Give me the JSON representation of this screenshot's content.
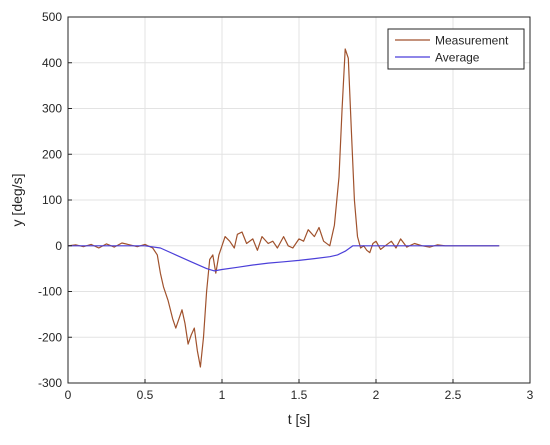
{
  "chart_data": {
    "type": "line",
    "xlabel": "t [s]",
    "ylabel": "y [deg/s]",
    "xlim": [
      0,
      3
    ],
    "ylim": [
      -300,
      500
    ],
    "xticks": [
      0,
      0.5,
      1,
      1.5,
      2,
      2.5,
      3
    ],
    "xtick_labels": [
      "0",
      "0.5",
      "1",
      "1.5",
      "2",
      "2.5",
      "3"
    ],
    "yticks": [
      -300,
      -200,
      -100,
      0,
      100,
      200,
      300,
      400,
      500
    ],
    "ytick_labels": [
      "-300",
      "-200",
      "-100",
      "0",
      "100",
      "200",
      "300",
      "400",
      "500"
    ],
    "grid": true,
    "legend_position": "top-right",
    "series": [
      {
        "name": "Measurement",
        "color": "#a0522d",
        "x": [
          0.0,
          0.05,
          0.1,
          0.15,
          0.2,
          0.25,
          0.3,
          0.35,
          0.4,
          0.45,
          0.5,
          0.55,
          0.58,
          0.6,
          0.62,
          0.65,
          0.68,
          0.7,
          0.72,
          0.74,
          0.76,
          0.78,
          0.8,
          0.82,
          0.84,
          0.86,
          0.88,
          0.9,
          0.92,
          0.94,
          0.96,
          0.98,
          1.0,
          1.02,
          1.05,
          1.08,
          1.1,
          1.13,
          1.16,
          1.2,
          1.23,
          1.26,
          1.3,
          1.33,
          1.36,
          1.4,
          1.43,
          1.46,
          1.5,
          1.53,
          1.56,
          1.6,
          1.63,
          1.66,
          1.7,
          1.73,
          1.76,
          1.78,
          1.8,
          1.82,
          1.84,
          1.86,
          1.88,
          1.9,
          1.92,
          1.94,
          1.96,
          1.98,
          2.0,
          2.03,
          2.06,
          2.1,
          2.13,
          2.16,
          2.2,
          2.25,
          2.3,
          2.35,
          2.4,
          2.45,
          2.5,
          2.6,
          2.7,
          2.8
        ],
        "y": [
          0,
          2,
          -2,
          3,
          -5,
          4,
          -3,
          6,
          2,
          -2,
          3,
          -5,
          -20,
          -60,
          -90,
          -120,
          -160,
          -180,
          -160,
          -140,
          -170,
          -215,
          -195,
          -180,
          -230,
          -265,
          -200,
          -100,
          -30,
          -20,
          -60,
          -20,
          0,
          20,
          10,
          -5,
          25,
          30,
          5,
          15,
          -10,
          20,
          5,
          10,
          -5,
          20,
          0,
          -5,
          15,
          10,
          35,
          20,
          40,
          10,
          0,
          45,
          150,
          300,
          430,
          410,
          250,
          100,
          20,
          -5,
          0,
          -10,
          -15,
          5,
          10,
          -8,
          0,
          10,
          -5,
          15,
          -3,
          5,
          0,
          -3,
          2,
          0,
          0,
          0,
          0,
          0
        ],
        "x_note_units": "s"
      },
      {
        "name": "Average",
        "color": "#4b3fd9",
        "x": [
          0.0,
          0.5,
          0.6,
          0.7,
          0.8,
          0.9,
          0.95,
          1.0,
          1.1,
          1.2,
          1.3,
          1.4,
          1.5,
          1.6,
          1.7,
          1.75,
          1.8,
          1.85,
          1.9,
          1.95,
          2.0,
          2.5,
          2.8
        ],
        "y": [
          0,
          0,
          -5,
          -20,
          -35,
          -50,
          -55,
          -52,
          -47,
          -42,
          -38,
          -35,
          -32,
          -28,
          -24,
          -20,
          -12,
          0,
          0,
          0,
          0,
          0,
          0
        ]
      }
    ]
  }
}
